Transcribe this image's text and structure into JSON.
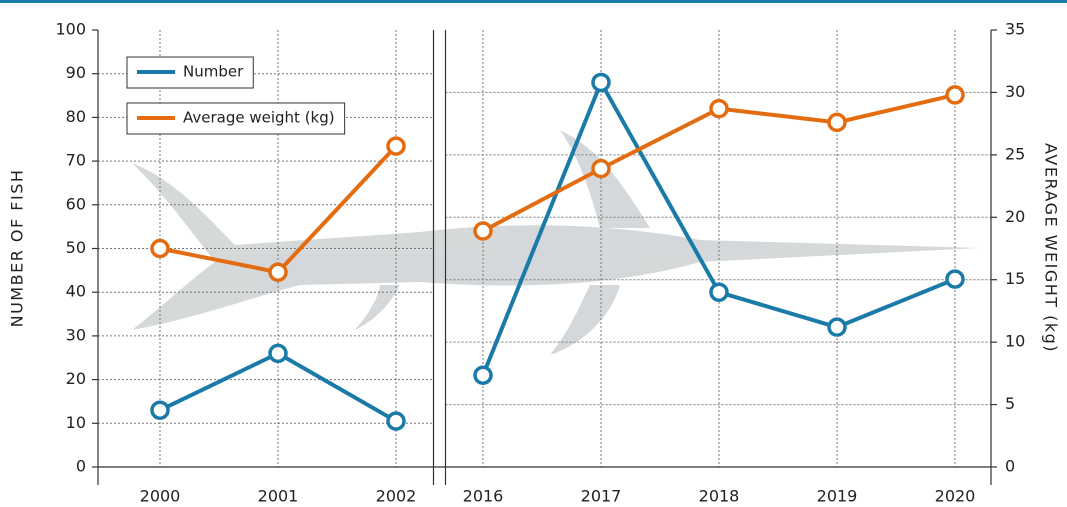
{
  "chart_data": {
    "type": "line",
    "x": [
      2000,
      2001,
      2002,
      2016,
      2017,
      2018,
      2019,
      2020
    ],
    "series": [
      {
        "name": "Number",
        "color": "#1a7aa8",
        "values": [
          13,
          26,
          10.5,
          21,
          88,
          40,
          32,
          43
        ]
      },
      {
        "name": "Average weight (kg)",
        "color": "#e36c10",
        "axis": "y2",
        "values": [
          17.5,
          15.6,
          25.7,
          18.9,
          23.9,
          28.7,
          27.6,
          29.8
        ]
      }
    ],
    "y_label": "NUMBER OF FISH",
    "y2_label": "AVERAGE WEIGHT (kg)",
    "ylim": [
      0,
      100
    ],
    "yticks": [
      0,
      10,
      20,
      30,
      40,
      50,
      60,
      70,
      80,
      90,
      100
    ],
    "y2lim": [
      0,
      35
    ],
    "y2ticks": [
      0,
      5,
      10,
      15,
      20,
      25,
      30,
      35
    ],
    "grid": true,
    "legend": "upper left"
  }
}
